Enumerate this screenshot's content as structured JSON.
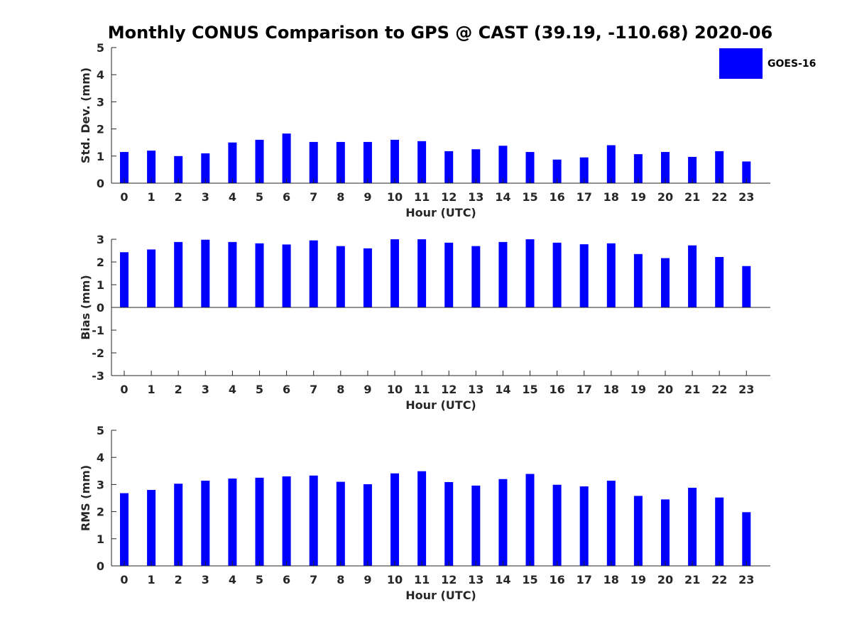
{
  "chart_data": {
    "type": "bar",
    "title": "Monthly CONUS Comparison to GPS @ CAST (39.19, -110.68) 2020-06",
    "legend": {
      "label": "GOES-16",
      "placement": "top-right"
    },
    "bar_color": "#0000ff",
    "categories": [
      "0",
      "1",
      "2",
      "3",
      "4",
      "5",
      "6",
      "7",
      "8",
      "9",
      "10",
      "11",
      "12",
      "13",
      "14",
      "15",
      "16",
      "17",
      "18",
      "19",
      "20",
      "21",
      "22",
      "23"
    ],
    "panels": [
      {
        "type": "bar",
        "xlabel": "Hour (UTC)",
        "ylabel": "Std. Dev. (mm)",
        "ylim": [
          0,
          5
        ],
        "yticks": [
          "0",
          "1",
          "2",
          "3",
          "4",
          "5"
        ],
        "series": [
          {
            "name": "GOES-16",
            "values": [
              1.15,
              1.2,
              1.0,
              1.1,
              1.5,
              1.6,
              1.83,
              1.52,
              1.52,
              1.52,
              1.6,
              1.55,
              1.18,
              1.25,
              1.38,
              1.15,
              0.87,
              0.95,
              1.4,
              1.07,
              1.15,
              0.97,
              1.18,
              0.8
            ]
          }
        ]
      },
      {
        "type": "bar",
        "xlabel": "Hour (UTC)",
        "ylabel": "Bias (mm)",
        "ylim": [
          -3,
          3
        ],
        "yticks": [
          "-3",
          "-2",
          "-1",
          "0",
          "1",
          "2",
          "3"
        ],
        "series": [
          {
            "name": "GOES-16",
            "values": [
              2.43,
              2.55,
              2.88,
              2.98,
              2.88,
              2.82,
              2.77,
              2.95,
              2.7,
              2.6,
              3.0,
              3.0,
              2.85,
              2.7,
              2.88,
              3.0,
              2.85,
              2.78,
              2.82,
              2.35,
              2.17,
              2.73,
              2.22,
              1.82
            ]
          }
        ]
      },
      {
        "type": "bar",
        "xlabel": "Hour (UTC)",
        "ylabel": "RMS (mm)",
        "ylim": [
          0,
          5
        ],
        "yticks": [
          "0",
          "1",
          "2",
          "3",
          "4",
          "5"
        ],
        "series": [
          {
            "name": "GOES-16",
            "values": [
              2.68,
              2.8,
              3.03,
              3.14,
              3.22,
              3.25,
              3.3,
              3.33,
              3.1,
              3.01,
              3.41,
              3.49,
              3.09,
              2.96,
              3.2,
              3.39,
              2.99,
              2.93,
              3.14,
              2.58,
              2.45,
              2.88,
              2.52,
              1.98
            ]
          }
        ]
      }
    ]
  }
}
